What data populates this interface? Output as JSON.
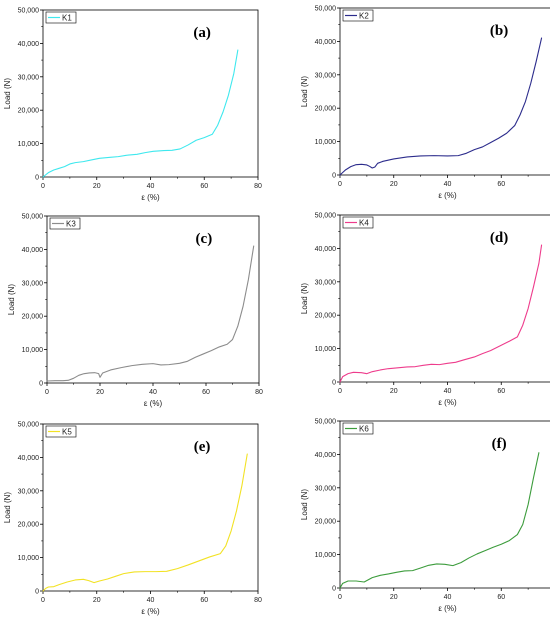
{
  "chart_data": [
    {
      "type": "line",
      "panel_label": "(a)",
      "xlabel": "ε (%)",
      "ylabel": "Load (N)",
      "xlim": [
        0,
        80
      ],
      "ylim": [
        0,
        50000
      ],
      "xticks": [
        "0",
        "20",
        "40",
        "60",
        "80"
      ],
      "yticks": [
        "0",
        "10,000",
        "20,000",
        "30,000",
        "40,000",
        "50,000"
      ],
      "legend_position": "top-left",
      "series": [
        {
          "name": "K1",
          "color": "#3ee8ee",
          "x": [
            0,
            2,
            4,
            6,
            8,
            10,
            12,
            15,
            18,
            21,
            25,
            28,
            31,
            35,
            38,
            41,
            45,
            48,
            51,
            54,
            57,
            60,
            63,
            65,
            67,
            69,
            71,
            72.5
          ],
          "y": [
            0,
            1300,
            2100,
            2600,
            3100,
            3900,
            4300,
            4600,
            5100,
            5600,
            5900,
            6100,
            6500,
            6800,
            7300,
            7700,
            7900,
            8000,
            8400,
            9600,
            11000,
            11800,
            12800,
            15500,
            19500,
            24500,
            31000,
            38000
          ]
        }
      ]
    },
    {
      "type": "line",
      "panel_label": "(b)",
      "xlabel": "ε (%)",
      "ylabel": "Load (N)",
      "xlim": [
        0,
        80
      ],
      "ylim": [
        0,
        50000
      ],
      "xticks": [
        "0",
        "20",
        "40",
        "60",
        "80"
      ],
      "yticks": [
        "0",
        "10,000",
        "20,000",
        "30,000",
        "40,000",
        "50,000"
      ],
      "legend_position": "top-left",
      "series": [
        {
          "name": "K2",
          "color": "#2c2c8c",
          "x": [
            0,
            2,
            4,
            6,
            8,
            10,
            11,
            12,
            13,
            14,
            16,
            20,
            25,
            30,
            35,
            40,
            44,
            47,
            50,
            53,
            56,
            59,
            62,
            65,
            67,
            69,
            71,
            73,
            75
          ],
          "y": [
            0,
            1500,
            2500,
            3100,
            3200,
            3000,
            2600,
            2100,
            2400,
            3500,
            4100,
            4800,
            5400,
            5700,
            5800,
            5700,
            5800,
            6500,
            7600,
            8400,
            9700,
            11000,
            12500,
            14800,
            18000,
            22000,
            27500,
            34000,
            41000
          ]
        }
      ]
    },
    {
      "type": "line",
      "panel_label": "(c)",
      "xlabel": "ε (%)",
      "ylabel": "Load (N)",
      "xlim": [
        0,
        80
      ],
      "ylim": [
        0,
        50000
      ],
      "xticks": [
        "0",
        "20",
        "40",
        "60",
        "80"
      ],
      "yticks": [
        "0",
        "10,000",
        "20,000",
        "30,000",
        "40,000",
        "50,000"
      ],
      "legend_position": "top-left",
      "series": [
        {
          "name": "K3",
          "color": "#8c8c8c",
          "x": [
            0,
            3,
            6,
            8,
            10,
            12,
            14,
            16,
            18,
            19.5,
            20,
            21,
            24,
            28,
            32,
            36,
            40,
            43,
            46,
            50,
            53,
            56,
            59,
            62,
            65,
            68,
            70,
            72,
            74,
            76,
            78
          ],
          "y": [
            600,
            700,
            700,
            800,
            1400,
            2300,
            2800,
            3000,
            3100,
            2800,
            1700,
            3000,
            3900,
            4600,
            5200,
            5600,
            5800,
            5400,
            5500,
            5900,
            6500,
            7700,
            8700,
            9700,
            10800,
            11600,
            13000,
            17000,
            23000,
            31000,
            41000
          ]
        }
      ]
    },
    {
      "type": "line",
      "panel_label": "(d)",
      "xlabel": "ε (%)",
      "ylabel": "Load (N)",
      "xlim": [
        0,
        80
      ],
      "ylim": [
        0,
        50000
      ],
      "xticks": [
        "0",
        "20",
        "40",
        "60",
        "80"
      ],
      "yticks": [
        "0",
        "10,000",
        "20,000",
        "30,000",
        "40,000",
        "50,000"
      ],
      "legend_position": "top-left",
      "series": [
        {
          "name": "K4",
          "color": "#ee3c8c",
          "x": [
            0,
            1,
            3,
            5,
            8,
            10,
            12,
            15,
            18,
            22,
            25,
            28,
            31,
            34,
            37,
            40,
            43,
            46,
            50,
            53,
            56,
            60,
            63,
            66,
            68,
            70,
            72,
            74,
            75
          ],
          "y": [
            0,
            1600,
            2500,
            2900,
            2800,
            2500,
            3100,
            3600,
            4000,
            4300,
            4500,
            4600,
            5000,
            5300,
            5200,
            5600,
            5900,
            6600,
            7500,
            8500,
            9400,
            11000,
            12200,
            13500,
            17000,
            22000,
            28500,
            35500,
            41000
          ]
        }
      ]
    },
    {
      "type": "line",
      "panel_label": "(e)",
      "xlabel": "ε (%)",
      "ylabel": "Load (N)",
      "xlim": [
        0,
        80
      ],
      "ylim": [
        0,
        50000
      ],
      "xticks": [
        "0",
        "20",
        "40",
        "60",
        "80"
      ],
      "yticks": [
        "0",
        "10,000",
        "20,000",
        "30,000",
        "40,000",
        "50,000"
      ],
      "legend_position": "top-left",
      "series": [
        {
          "name": "K5",
          "color": "#f2e224",
          "x": [
            0,
            1,
            2,
            4,
            6,
            9,
            12,
            15,
            17,
            19,
            21,
            24,
            27,
            30,
            34,
            38,
            42,
            46,
            50,
            54,
            58,
            62,
            66,
            68,
            70,
            72,
            74,
            76
          ],
          "y": [
            0,
            800,
            1200,
            1300,
            1900,
            2700,
            3300,
            3500,
            3100,
            2500,
            3000,
            3600,
            4400,
            5200,
            5700,
            5800,
            5800,
            5900,
            6700,
            7800,
            9000,
            10200,
            11200,
            13500,
            18000,
            24000,
            31500,
            41000
          ]
        }
      ]
    },
    {
      "type": "line",
      "panel_label": "(f)",
      "xlabel": "ε (%)",
      "ylabel": "Load (N)",
      "xlim": [
        0,
        80
      ],
      "ylim": [
        0,
        50000
      ],
      "xticks": [
        "0",
        "20",
        "40",
        "60",
        "80"
      ],
      "yticks": [
        "0",
        "10,000",
        "20,000",
        "30,000",
        "40,000",
        "50,000"
      ],
      "legend_position": "top-left",
      "series": [
        {
          "name": "K6",
          "color": "#3c9c3c",
          "x": [
            0,
            1,
            3,
            6,
            9,
            12,
            15,
            18,
            21,
            24,
            27,
            30,
            33,
            36,
            39,
            42,
            45,
            48,
            51,
            54,
            57,
            60,
            63,
            66,
            68,
            70,
            72,
            74
          ],
          "y": [
            0,
            1400,
            2100,
            2100,
            1800,
            3100,
            3800,
            4200,
            4700,
            5100,
            5200,
            6000,
            6800,
            7200,
            7100,
            6700,
            7600,
            9000,
            10200,
            11200,
            12200,
            13100,
            14200,
            16000,
            19000,
            25000,
            33000,
            40500
          ]
        }
      ]
    }
  ]
}
